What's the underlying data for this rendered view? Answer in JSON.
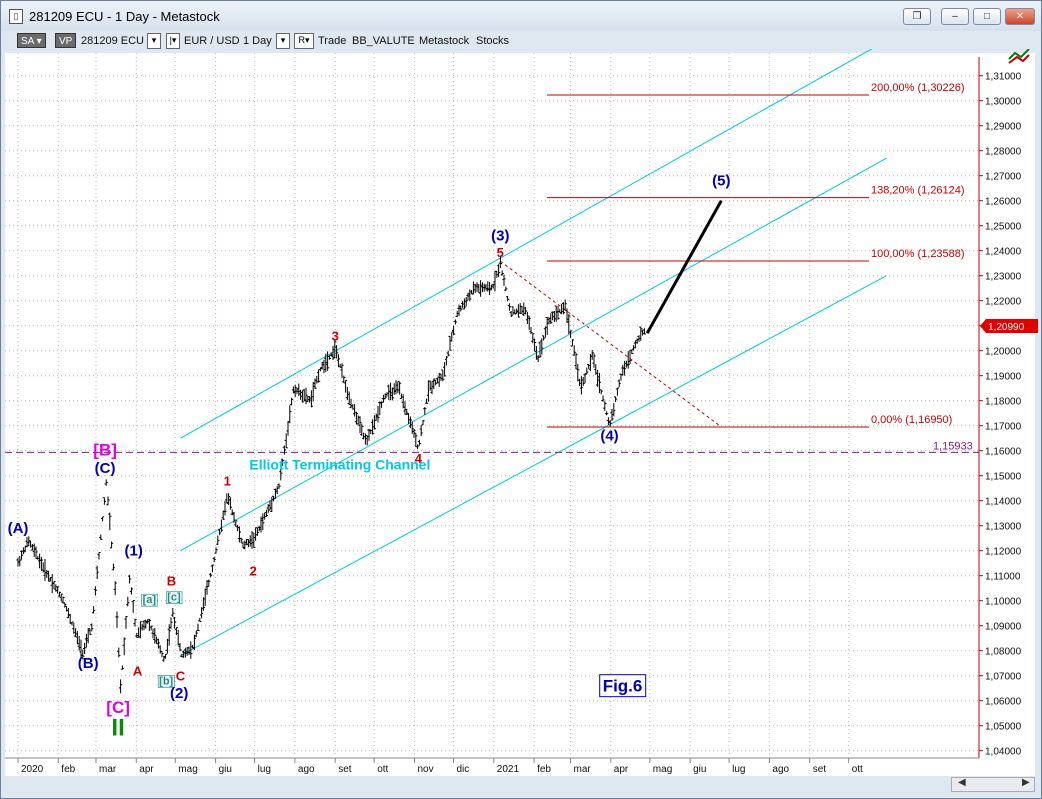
{
  "window": {
    "title": "281209 ECU - 1 Day - Metastock",
    "app_icon": "chart-icon",
    "buttons": [
      "restore-icon",
      "minimize-icon",
      "maximize-icon",
      "close-icon"
    ]
  },
  "toolbar": {
    "sa_label": "SA",
    "vp_label": "VP",
    "symbol": "281209 ECU",
    "instrument": "EUR / USD",
    "period": "1 Day",
    "r_label": "R",
    "trade": "Trade",
    "bb": "BB_VALUTE",
    "metastock": "Metastock",
    "stocks": "Stocks"
  },
  "colors": {
    "background": "#ffffff",
    "channel": "#00c8e6",
    "fib_lines": "#c80000",
    "wave_blue": "#0000b4",
    "wave_red": "#d00000",
    "wave_magenta": "#e000e0",
    "wave_green": "#0a8a0a",
    "sub_wave_teal": "#2a8a8a",
    "price_flag": "#e00000"
  },
  "chart_data": {
    "type": "candlestick",
    "title": "281209 ECU - 1 Day",
    "ylim": [
      1.035,
      1.313
    ],
    "y_ticks": [
      "1,04000",
      "1,05000",
      "1,06000",
      "1,07000",
      "1,08000",
      "1,09000",
      "1,10000",
      "1,11000",
      "1,12000",
      "1,13000",
      "1,14000",
      "1,15000",
      "1,16000",
      "1,17000",
      "1,18000",
      "1,19000",
      "1,20000",
      "1,21000",
      "1,22000",
      "1,23000",
      "1,24000",
      "1,25000",
      "1,26000",
      "1,27000",
      "1,28000",
      "1,29000",
      "1,30000",
      "1,31000"
    ],
    "x_ticks": [
      "2020",
      "feb",
      "mar",
      "apr",
      "mag",
      "giu",
      "lug",
      "ago",
      "set",
      "ott",
      "nov",
      "dic",
      "2021",
      "feb",
      "mar",
      "apr",
      "mag",
      "giu",
      "lug",
      "ago",
      "set",
      "ott"
    ],
    "x_range": [
      "2020-01-01",
      "2021-11-15"
    ],
    "last_price": "1,20990",
    "price_path": [
      [
        "2020-01-01",
        1.115
      ],
      [
        "2020-01-09",
        1.124
      ],
      [
        "2020-01-22",
        1.112
      ],
      [
        "2020-02-05",
        1.1
      ],
      [
        "2020-02-20",
        1.079
      ],
      [
        "2020-02-27",
        1.09
      ],
      [
        "2020-03-09",
        1.148
      ],
      [
        "2020-03-16",
        1.103
      ],
      [
        "2020-03-20",
        1.065
      ],
      [
        "2020-03-27",
        1.11
      ],
      [
        "2020-04-01",
        1.086
      ],
      [
        "2020-04-10",
        1.092
      ],
      [
        "2020-04-23",
        1.076
      ],
      [
        "2020-04-29",
        1.095
      ],
      [
        "2020-05-06",
        1.078
      ],
      [
        "2020-05-15",
        1.082
      ],
      [
        "2020-05-29",
        1.112
      ],
      [
        "2020-06-10",
        1.142
      ],
      [
        "2020-06-22",
        1.122
      ],
      [
        "2020-07-01",
        1.125
      ],
      [
        "2020-07-20",
        1.146
      ],
      [
        "2020-07-31",
        1.185
      ],
      [
        "2020-08-13",
        1.18
      ],
      [
        "2020-08-20",
        1.192
      ],
      [
        "2020-09-01",
        1.201
      ],
      [
        "2020-09-10",
        1.184
      ],
      [
        "2020-09-25",
        1.163
      ],
      [
        "2020-10-09",
        1.182
      ],
      [
        "2020-10-20",
        1.185
      ],
      [
        "2020-11-04",
        1.161
      ],
      [
        "2020-11-12",
        1.185
      ],
      [
        "2020-11-23",
        1.19
      ],
      [
        "2020-12-04",
        1.215
      ],
      [
        "2020-12-17",
        1.225
      ],
      [
        "2020-12-31",
        1.225
      ],
      [
        "2021-01-06",
        1.235
      ],
      [
        "2021-01-14",
        1.215
      ],
      [
        "2021-01-25",
        1.217
      ],
      [
        "2021-02-04",
        1.197
      ],
      [
        "2021-02-12",
        1.212
      ],
      [
        "2021-02-25",
        1.218
      ],
      [
        "2021-03-09",
        1.185
      ],
      [
        "2021-03-18",
        1.198
      ],
      [
        "2021-03-31",
        1.17
      ],
      [
        "2021-04-09",
        1.19
      ],
      [
        "2021-04-20",
        1.203
      ],
      [
        "2021-04-27",
        1.208
      ]
    ],
    "projection": {
      "from": [
        "2021-04-29",
        1.207
      ],
      "to": [
        "2021-06-25",
        1.26
      ],
      "label": "(5)"
    },
    "fib_levels": [
      {
        "label": "200,00% (1,30226)",
        "value": 1.30226
      },
      {
        "label": "138,20% (1,26124)",
        "value": 1.26124
      },
      {
        "label": "100,00% (1,23588)",
        "value": 1.23588
      },
      {
        "label": "0,00% (1,16950)",
        "value": 1.1695
      }
    ],
    "horizontal_line": {
      "label": "1,15933",
      "value": 1.15933
    },
    "trendline_dashed": {
      "from": [
        "2021-01-06",
        1.2358
      ],
      "to": [
        "2021-06-25",
        1.1695
      ]
    },
    "channel_lines": [
      {
        "from": [
          "2020-05-05",
          1.165
        ],
        "to": [
          "2021-10-30",
          1.324
        ]
      },
      {
        "from": [
          "2020-05-05",
          1.12
        ],
        "to": [
          "2021-10-30",
          1.277
        ]
      },
      {
        "from": [
          "2020-05-05",
          1.078
        ],
        "to": [
          "2021-10-30",
          1.23
        ]
      }
    ],
    "channel_label": "Elliott Terminating Channel",
    "figure_label": "Fig.6",
    "wave_labels": [
      {
        "text": "(A)",
        "date": "2020-01-01",
        "price": 1.127,
        "color": "blue"
      },
      {
        "text": "(B)",
        "date": "2020-02-24",
        "price": 1.073,
        "color": "blue"
      },
      {
        "text": "[B]",
        "date": "2020-03-08",
        "price": 1.158,
        "color": "magenta"
      },
      {
        "text": "(C)",
        "date": "2020-03-08",
        "price": 1.151,
        "color": "blue"
      },
      {
        "text": "[C]",
        "date": "2020-03-18",
        "price": 1.055,
        "color": "magenta"
      },
      {
        "text": "II",
        "date": "2020-03-18",
        "price": 1.046,
        "color": "green"
      },
      {
        "text": "(1)",
        "date": "2020-03-30",
        "price": 1.118,
        "color": "blue"
      },
      {
        "text": "A",
        "date": "2020-04-02",
        "price": 1.07,
        "color": "red"
      },
      {
        "text": "[a]",
        "date": "2020-04-11",
        "price": 1.099,
        "color": "teal"
      },
      {
        "text": "[b]",
        "date": "2020-04-24",
        "price": 1.0665,
        "color": "teal"
      },
      {
        "text": "B",
        "date": "2020-04-28",
        "price": 1.106,
        "color": "red"
      },
      {
        "text": "[c]",
        "date": "2020-04-30",
        "price": 1.1,
        "color": "teal"
      },
      {
        "text": "C",
        "date": "2020-05-05",
        "price": 1.068,
        "color": "red"
      },
      {
        "text": "(2)",
        "date": "2020-05-04",
        "price": 1.061,
        "color": "blue"
      },
      {
        "text": "1",
        "date": "2020-06-10",
        "price": 1.146,
        "color": "red"
      },
      {
        "text": "2",
        "date": "2020-06-30",
        "price": 1.11,
        "color": "red"
      },
      {
        "text": "3",
        "date": "2020-09-01",
        "price": 1.204,
        "color": "red"
      },
      {
        "text": "4",
        "date": "2020-11-04",
        "price": 1.155,
        "color": "red"
      },
      {
        "text": "(3)",
        "date": "2021-01-06",
        "price": 1.244,
        "color": "blue"
      },
      {
        "text": "5",
        "date": "2021-01-06",
        "price": 1.2375,
        "color": "red"
      },
      {
        "text": "(4)",
        "date": "2021-03-31",
        "price": 1.164,
        "color": "blue"
      },
      {
        "text": "(5)",
        "date": "2021-06-25",
        "price": 1.266,
        "color": "blue"
      }
    ]
  }
}
